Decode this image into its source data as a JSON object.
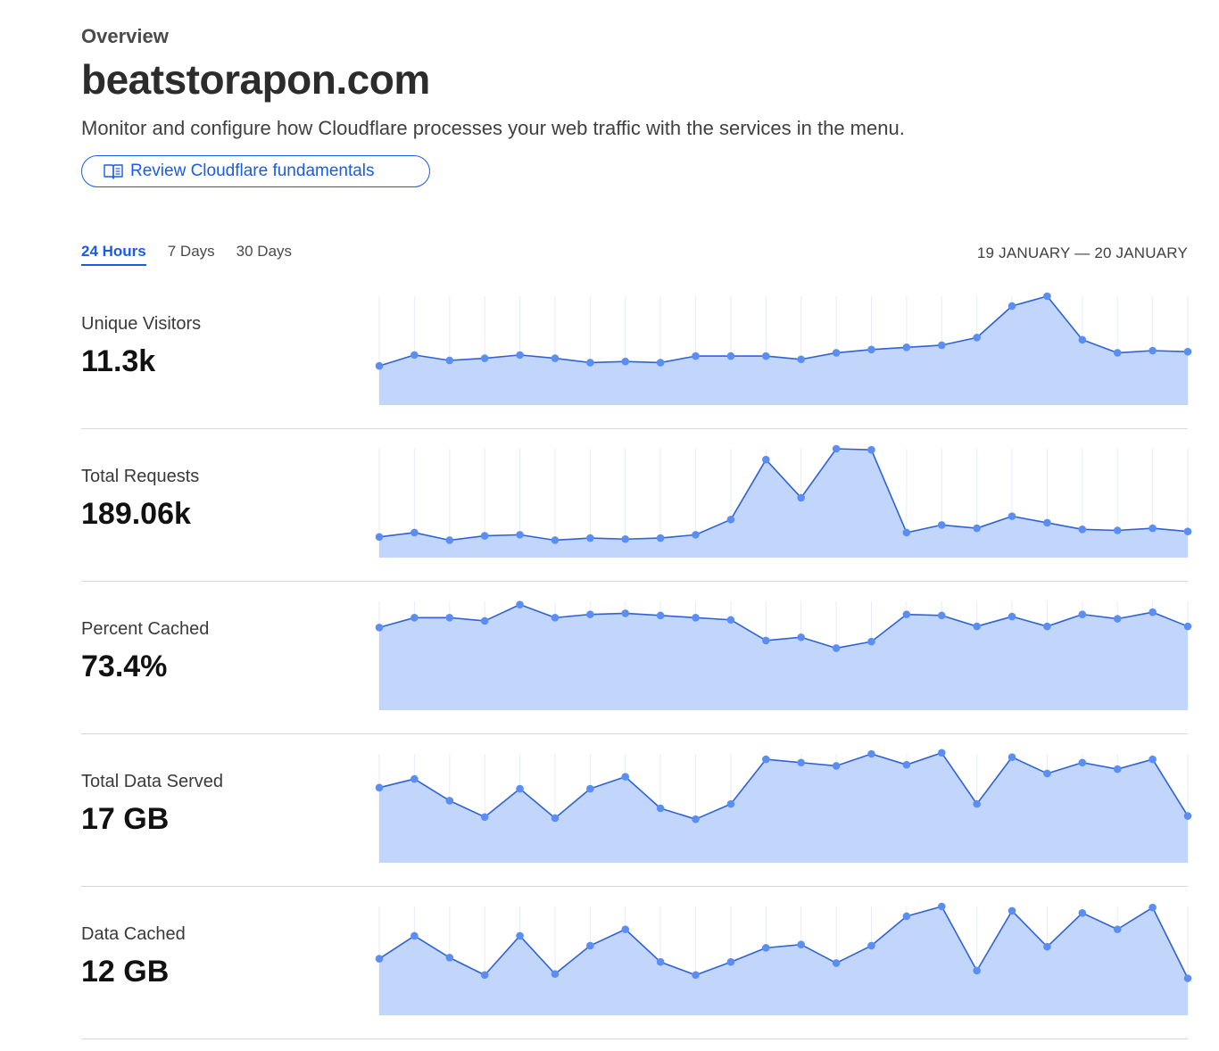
{
  "header": {
    "eyebrow": "Overview",
    "zone_name": "beatstorapon.com",
    "description": "Monitor and configure how Cloudflare processes your web traffic with the services in the menu.",
    "fundamentals_label": "Review Cloudflare fundamentals",
    "fundamentals_icon": "book-icon"
  },
  "time_range": {
    "tabs": [
      {
        "label": "24 Hours",
        "active": true
      },
      {
        "label": "7 Days",
        "active": false
      },
      {
        "label": "30 Days",
        "active": false
      }
    ],
    "date_range": "19 JANUARY — 20 JANUARY"
  },
  "colors": {
    "accent": "#1a5be6",
    "line": "#2f62d6",
    "point": "#5b8ef2",
    "fill": "#c2d6fb",
    "grid": "#e6ecfa"
  },
  "metrics": [
    {
      "label": "Unique Visitors",
      "value": "11.3k",
      "series": [
        0.36,
        0.46,
        0.41,
        0.43,
        0.46,
        0.43,
        0.39,
        0.4,
        0.39,
        0.45,
        0.45,
        0.45,
        0.42,
        0.48,
        0.51,
        0.53,
        0.55,
        0.62,
        0.91,
        1.0,
        0.6,
        0.48,
        0.5,
        0.49
      ]
    },
    {
      "label": "Total Requests",
      "value": "189.06k",
      "series": [
        0.19,
        0.23,
        0.16,
        0.2,
        0.21,
        0.16,
        0.18,
        0.17,
        0.18,
        0.21,
        0.35,
        0.9,
        0.55,
        1.0,
        0.99,
        0.23,
        0.3,
        0.27,
        0.38,
        0.32,
        0.26,
        0.25,
        0.27,
        0.24
      ]
    },
    {
      "label": "Percent Cached",
      "value": "73.4%",
      "series": [
        0.76,
        0.85,
        0.85,
        0.82,
        0.97,
        0.85,
        0.88,
        0.89,
        0.87,
        0.85,
        0.83,
        0.64,
        0.67,
        0.57,
        0.63,
        0.88,
        0.87,
        0.77,
        0.86,
        0.77,
        0.88,
        0.84,
        0.9,
        0.77
      ]
    },
    {
      "label": "Total Data Served",
      "value": "17 GB",
      "series": [
        0.69,
        0.77,
        0.57,
        0.42,
        0.68,
        0.41,
        0.68,
        0.79,
        0.5,
        0.4,
        0.54,
        0.95,
        0.92,
        0.89,
        1.0,
        0.9,
        1.01,
        0.54,
        0.97,
        0.82,
        0.92,
        0.86,
        0.95,
        0.43
      ]
    },
    {
      "label": "Data Cached",
      "value": "12 GB",
      "series": [
        0.52,
        0.73,
        0.53,
        0.37,
        0.73,
        0.38,
        0.64,
        0.79,
        0.49,
        0.37,
        0.49,
        0.62,
        0.65,
        0.48,
        0.64,
        0.91,
        1.0,
        0.41,
        0.96,
        0.63,
        0.94,
        0.79,
        0.99,
        0.34
      ]
    }
  ]
}
